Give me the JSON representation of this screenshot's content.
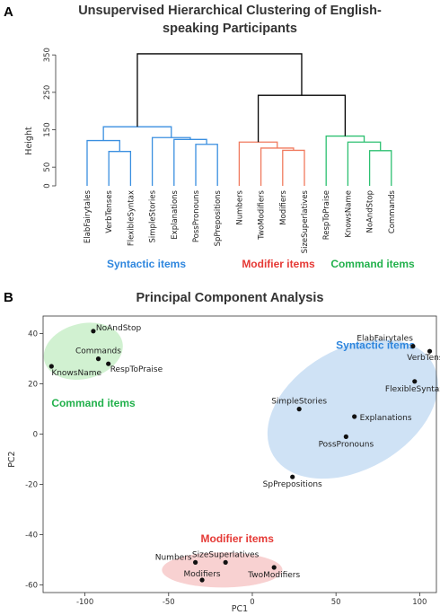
{
  "panel_a_letter": "A",
  "panel_b_letter": "B",
  "chart_data": [
    {
      "type": "dendrogram",
      "title_line1": "Unsupervised Hierarchical Clustering of English-",
      "title_line2": "speaking Participants",
      "ylabel": "Height",
      "yticks": [
        0,
        50,
        150,
        250,
        350
      ],
      "ylim": [
        0,
        360
      ],
      "leaves": [
        "ElabFairytales",
        "VerbTenses",
        "FlexibleSyntax",
        "SimpleStories",
        "Explanations",
        "PossPronouns",
        "SpPrepositions",
        "Numbers",
        "TwoModifiers",
        "Modifiers",
        "SizeSuperlatives",
        "RespToPraise",
        "KnowsName",
        "NoAndStop",
        "Commands"
      ],
      "merges": [
        {
          "a": 1,
          "b": 2,
          "height": 92
        },
        {
          "a": 0,
          "b": "m0",
          "height": 121
        },
        {
          "a": 5,
          "b": 6,
          "height": 111
        },
        {
          "a": 4,
          "b": "m2",
          "height": 124
        },
        {
          "a": 3,
          "b": "m3",
          "height": 129
        },
        {
          "a": "m1",
          "b": "m4",
          "height": 158
        },
        {
          "a": 9,
          "b": 10,
          "height": 95
        },
        {
          "a": 8,
          "b": "m6",
          "height": 101
        },
        {
          "a": 7,
          "b": "m7",
          "height": 117
        },
        {
          "a": 13,
          "b": 14,
          "height": 94
        },
        {
          "a": 12,
          "b": "m9",
          "height": 117
        },
        {
          "a": 11,
          "b": "m10",
          "height": 133
        },
        {
          "a": "m8",
          "b": "m11",
          "height": 242
        },
        {
          "a": "m5",
          "b": "m12",
          "height": 353
        }
      ],
      "cluster_labels": [
        {
          "text": "Syntactic items",
          "color": "#2E86DE"
        },
        {
          "text": "Modifier items",
          "color": "#E53935"
        },
        {
          "text": "Command items",
          "color": "#22B14C"
        }
      ],
      "cluster_colors": [
        "#3A8FE0",
        "#F07A5E",
        "#2DC071"
      ]
    },
    {
      "type": "scatter",
      "title": "Principal Component Analysis",
      "xlabel": "PC1",
      "ylabel": "PC2",
      "xticks": [
        -100,
        -50,
        0,
        50,
        100
      ],
      "yticks": [
        -60,
        -40,
        -20,
        0,
        20,
        40
      ],
      "xlim": [
        -125,
        110
      ],
      "ylim": [
        -63,
        47
      ],
      "points": [
        {
          "label": "NoAndStop",
          "x": -95,
          "y": 41
        },
        {
          "label": "Commands",
          "x": -92,
          "y": 30
        },
        {
          "label": "KnowsName",
          "x": -120,
          "y": 27
        },
        {
          "label": "RespToPraise",
          "x": -86,
          "y": 28
        },
        {
          "label": "ElabFairytales",
          "x": 96,
          "y": 35
        },
        {
          "label": "VerbTenses",
          "x": 106,
          "y": 33
        },
        {
          "label": "FlexibleSyntax",
          "x": 97,
          "y": 21
        },
        {
          "label": "SimpleStories",
          "x": 28,
          "y": 10
        },
        {
          "label": "Explanations",
          "x": 61,
          "y": 7
        },
        {
          "label": "PossPronouns",
          "x": 56,
          "y": -1
        },
        {
          "label": "SpPrepositions",
          "x": 24,
          "y": -17
        },
        {
          "label": "Numbers",
          "x": -34,
          "y": -51
        },
        {
          "label": "SizeSuperlatives",
          "x": -16,
          "y": -51
        },
        {
          "label": "Modifiers",
          "x": -30,
          "y": -58
        },
        {
          "label": "TwoModifiers",
          "x": 13,
          "y": -53
        }
      ],
      "groups": [
        {
          "text": "Command items",
          "color": "#22B14C",
          "fill": "#C9EFC9"
        },
        {
          "text": "Syntactic items",
          "color": "#2E86DE",
          "fill": "#C7DDF3"
        },
        {
          "text": "Modifier items",
          "color": "#E53935",
          "fill": "#F7C9C9"
        }
      ]
    }
  ]
}
